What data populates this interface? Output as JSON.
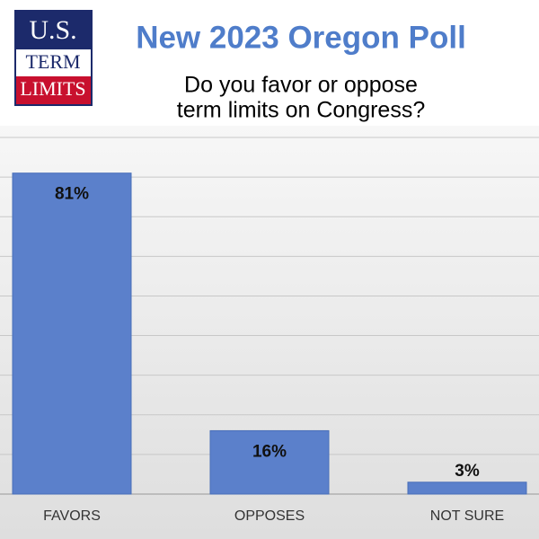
{
  "logo": {
    "line1": "U.S.",
    "line2": "TERM",
    "line3": "LIMITS"
  },
  "chart_data": {
    "type": "bar",
    "title": "New 2023 Oregon Poll",
    "subtitle": [
      "Do you favor or oppose",
      "term limits on Congress?"
    ],
    "categories": [
      "FAVORS",
      "OPPOSES",
      "NOT SURE"
    ],
    "values": [
      81,
      16,
      3
    ],
    "value_labels": [
      "81%",
      "16%",
      "3%"
    ],
    "color": "#5b80cb",
    "ylim": [
      0,
      90
    ],
    "yticks": [
      0,
      10,
      20,
      30,
      40,
      50,
      60,
      70,
      80,
      90
    ],
    "grid": true
  }
}
